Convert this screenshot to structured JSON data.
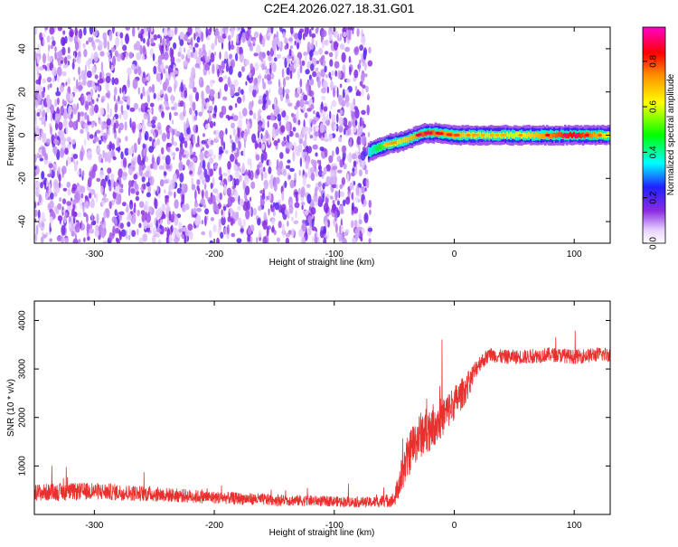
{
  "title": "C2E4.2026.027.18.31.G01",
  "chart_data": [
    {
      "type": "heatmap",
      "xlabel": "Height of straight line (km)",
      "ylabel": "Frequency (Hz)",
      "xlim": [
        -350,
        130
      ],
      "ylim": [
        -50,
        50
      ],
      "xticks": [
        -300,
        -200,
        -100,
        0,
        100
      ],
      "yticks": [
        -40,
        -20,
        0,
        20,
        40
      ],
      "colorbar": {
        "label": "Normalized spectral amplitude",
        "range": [
          0,
          0.95
        ],
        "ticks": [
          0.0,
          0.2,
          0.4,
          0.6,
          0.8
        ],
        "colors": [
          "#ffffff",
          "#c9a4ff",
          "#8a2be2",
          "#0000ff",
          "#00ffff",
          "#00ff00",
          "#ffff00",
          "#ff8c00",
          "#ff0000",
          "#ff00cc"
        ]
      },
      "noise_region": {
        "x_range": [
          -350,
          -70
        ],
        "level": 0.15
      },
      "signal_track": {
        "x": [
          -72,
          -65,
          -55,
          -45,
          -35,
          -25,
          -15,
          0,
          20,
          50,
          80,
          100,
          130
        ],
        "y": [
          -8,
          -6,
          -4,
          -3,
          -1,
          1,
          1,
          0,
          0,
          0,
          0,
          0,
          0
        ],
        "amplitude": [
          0.35,
          0.45,
          0.6,
          0.65,
          0.7,
          0.8,
          0.75,
          0.7,
          0.6,
          0.6,
          0.75,
          0.85,
          0.6
        ]
      }
    },
    {
      "type": "line",
      "xlabel": "Height of straight line (km)",
      "ylabel": "SNR (10 * v/v)",
      "xlim": [
        -350,
        130
      ],
      "ylim": [
        0,
        4400
      ],
      "xticks": [
        -300,
        -200,
        -100,
        0,
        100
      ],
      "yticks": [
        1000,
        2000,
        3000,
        4000
      ],
      "color": "#e8302e",
      "series": [
        {
          "x": [
            -350,
            -300,
            -250,
            -200,
            -150,
            -100,
            -70,
            -50,
            -45,
            -40,
            -35,
            -30,
            -20,
            -10,
            0,
            10,
            20,
            30,
            40,
            60,
            80,
            100,
            120,
            130
          ],
          "y": [
            450,
            480,
            420,
            350,
            300,
            270,
            250,
            300,
            700,
            1100,
            1400,
            1600,
            1800,
            2000,
            2300,
            2600,
            3100,
            3300,
            3250,
            3250,
            3300,
            3250,
            3300,
            3300
          ],
          "spread": [
            300,
            300,
            260,
            220,
            200,
            180,
            180,
            250,
            600,
            700,
            800,
            800,
            800,
            700,
            600,
            500,
            300,
            250,
            250,
            250,
            250,
            250,
            250,
            250
          ]
        }
      ]
    }
  ]
}
